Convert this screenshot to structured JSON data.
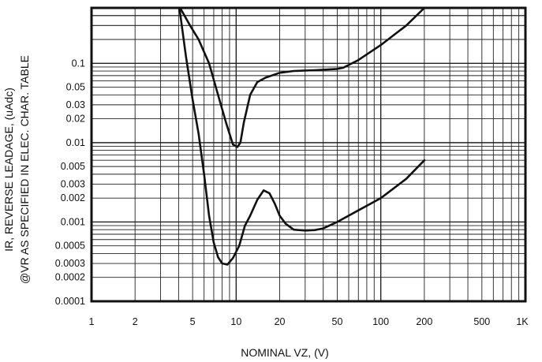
{
  "chart_data": {
    "type": "line",
    "x_scale": "log",
    "y_scale": "log",
    "xlim": [
      1,
      1000
    ],
    "ylim": [
      0.0001,
      0.5
    ],
    "grid": true,
    "xlabel": "NOMINAL VZ, (V)",
    "ylabel_lines": [
      "IR, REVERSE LEADAGE, (uAdc)",
      "@VR AS SPECIFIED IN ELEC. CHAR. TABLE"
    ],
    "x_ticks": [
      {
        "value": 1,
        "label": "1"
      },
      {
        "value": 2,
        "label": "2"
      },
      {
        "value": 5,
        "label": "5"
      },
      {
        "value": 10,
        "label": "10"
      },
      {
        "value": 20,
        "label": "20"
      },
      {
        "value": 50,
        "label": "50"
      },
      {
        "value": 100,
        "label": "100"
      },
      {
        "value": 200,
        "label": "200"
      },
      {
        "value": 500,
        "label": "500"
      },
      {
        "value": 1000,
        "label": "1K"
      }
    ],
    "y_ticks": [
      {
        "value": 0.1,
        "label": "0.1"
      },
      {
        "value": 0.05,
        "label": "0.05"
      },
      {
        "value": 0.03,
        "label": "0.03"
      },
      {
        "value": 0.02,
        "label": "0.02"
      },
      {
        "value": 0.01,
        "label": "0.01"
      },
      {
        "value": 0.005,
        "label": "0.005"
      },
      {
        "value": 0.003,
        "label": "0.003"
      },
      {
        "value": 0.002,
        "label": "0.002"
      },
      {
        "value": 0.001,
        "label": "0.001"
      },
      {
        "value": 0.0005,
        "label": "0.0005"
      },
      {
        "value": 0.0003,
        "label": "0.0003"
      },
      {
        "value": 0.0002,
        "label": "0.0002"
      },
      {
        "value": 0.0001,
        "label": "0.0001"
      }
    ],
    "series": [
      {
        "x": [
          4.1,
          4.8,
          5.5,
          6.5,
          7.5,
          8.5,
          9.5,
          10.2,
          10.7,
          11.3,
          12.5,
          14,
          16,
          20,
          25,
          35,
          50,
          55,
          70,
          100,
          150,
          200
        ],
        "y": [
          0.5,
          0.3,
          0.2,
          0.1,
          0.04,
          0.018,
          0.0095,
          0.0088,
          0.01,
          0.018,
          0.04,
          0.058,
          0.066,
          0.076,
          0.08,
          0.082,
          0.085,
          0.088,
          0.11,
          0.17,
          0.3,
          0.5
        ]
      },
      {
        "x": [
          4.05,
          4.5,
          5,
          5.5,
          6,
          6.5,
          7,
          7.5,
          8,
          8.7,
          9.5,
          10.5,
          11.5,
          12.5,
          14,
          15.5,
          17,
          18.5,
          20,
          22,
          25,
          30,
          35,
          40,
          50,
          70,
          100,
          150,
          200
        ],
        "y": [
          0.5,
          0.12,
          0.035,
          0.013,
          0.004,
          0.0012,
          0.00055,
          0.00036,
          0.0003,
          0.00029,
          0.00035,
          0.0005,
          0.0009,
          0.0012,
          0.0019,
          0.0025,
          0.0023,
          0.0017,
          0.0012,
          0.00095,
          0.0008,
          0.00078,
          0.00079,
          0.00083,
          0.001,
          0.0014,
          0.002,
          0.0035,
          0.006
        ]
      }
    ]
  }
}
